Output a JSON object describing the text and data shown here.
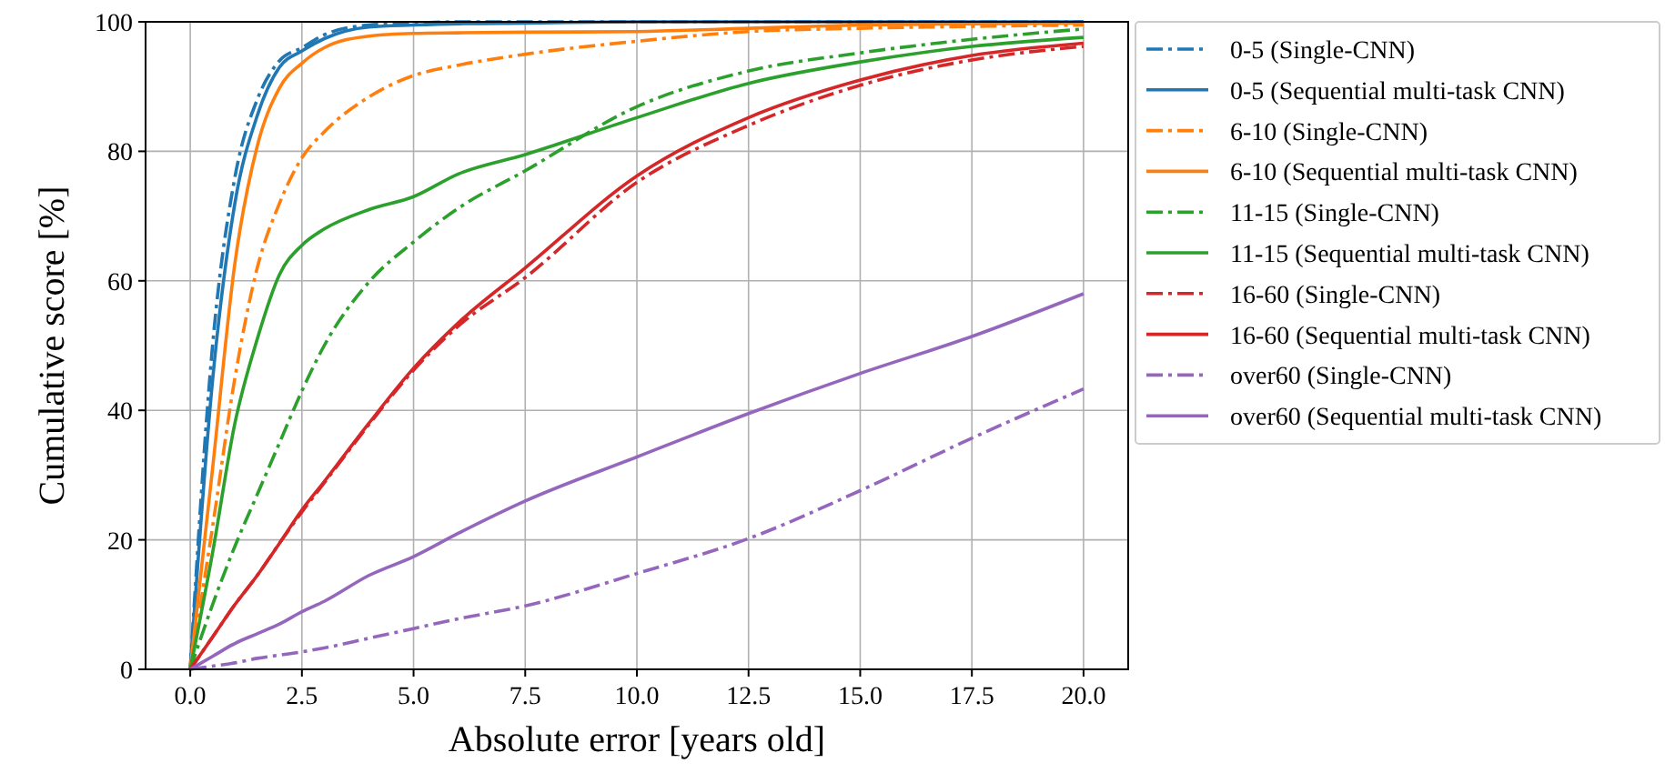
{
  "chart_data": {
    "type": "line",
    "xlabel": "Absolute error [years old]",
    "ylabel": "Cumulative score [%]",
    "xlim": [
      -1,
      21
    ],
    "ylim": [
      0,
      100
    ],
    "xticks": [
      {
        "value": 0,
        "label": "0.0"
      },
      {
        "value": 2.5,
        "label": "2.5"
      },
      {
        "value": 5,
        "label": "5.0"
      },
      {
        "value": 7.5,
        "label": "7.5"
      },
      {
        "value": 10,
        "label": "10.0"
      },
      {
        "value": 12.5,
        "label": "12.5"
      },
      {
        "value": 15,
        "label": "15.0"
      },
      {
        "value": 17.5,
        "label": "17.5"
      },
      {
        "value": 20,
        "label": "20.0"
      }
    ],
    "yticks": [
      0,
      20,
      40,
      60,
      80,
      100
    ],
    "grid": true,
    "legend": "right",
    "x": [
      0,
      0.5,
      1,
      1.5,
      2,
      2.5,
      3,
      4,
      5,
      6,
      7.5,
      10,
      12.5,
      15,
      17.5,
      20
    ],
    "series": [
      {
        "name": "0-5 (Single-CNN)",
        "color": "#1f77b4",
        "line_style": "dashdot",
        "values": [
          0,
          50,
          76,
          88,
          94,
          96,
          98,
          99.5,
          99.8,
          100,
          100,
          100,
          100,
          100,
          100,
          100
        ]
      },
      {
        "name": "0-5 (Sequential multi-task CNN)",
        "color": "#1f77b4",
        "line_style": "solid",
        "values": [
          0,
          44.6,
          72,
          85.5,
          93,
          95.5,
          97.4,
          99.2,
          99.5,
          99.7,
          99.8,
          100,
          100,
          100,
          100,
          100
        ]
      },
      {
        "name": "6-10 (Single-CNN)",
        "color": "#ff7f0e",
        "line_style": "dashdot",
        "values": [
          0,
          22,
          45,
          62,
          72,
          79,
          83,
          88.4,
          91.7,
          93.3,
          95,
          97,
          98.5,
          99,
          99.3,
          99.5
        ]
      },
      {
        "name": "6-10 (Sequential multi-task CNN)",
        "color": "#ff7f0e",
        "line_style": "solid",
        "values": [
          0,
          31,
          62.7,
          80.8,
          89.8,
          93.6,
          96,
          97.8,
          98.2,
          98.3,
          98.4,
          98.5,
          99,
          99.5,
          99.7,
          99.8
        ]
      },
      {
        "name": "11-15 (Single-CNN)",
        "color": "#2ca02c",
        "line_style": "dashdot",
        "values": [
          0,
          10,
          19,
          27,
          35,
          43,
          50,
          59.8,
          66,
          71.2,
          77,
          86.9,
          92.4,
          95.2,
          97.3,
          98.9
        ]
      },
      {
        "name": "11-15 (Sequential multi-task CNN)",
        "color": "#2ca02c",
        "line_style": "solid",
        "values": [
          0,
          18,
          38,
          51,
          61,
          65.5,
          68,
          71,
          73,
          76.5,
          79.5,
          85.2,
          90.5,
          93.8,
          96.2,
          97.6
        ]
      },
      {
        "name": "16-60 (Single-CNN)",
        "color": "#d62728",
        "line_style": "dashdot",
        "values": [
          0,
          5,
          10,
          14.5,
          19.5,
          24.3,
          28.8,
          37.8,
          46.2,
          53,
          60.5,
          75.2,
          84,
          90.2,
          94.1,
          96.2
        ]
      },
      {
        "name": "16-60 (Sequential multi-task CNN)",
        "color": "#d62728",
        "line_style": "solid",
        "values": [
          0,
          5,
          10,
          14.5,
          19.5,
          24.6,
          29,
          38,
          46.5,
          53.5,
          62,
          76.2,
          85.2,
          91,
          94.8,
          96.7
        ]
      },
      {
        "name": "over60 (Single-CNN)",
        "color": "#9467bd",
        "line_style": "dashdot",
        "values": [
          0,
          0.5,
          1,
          1.7,
          2.2,
          2.7,
          3.3,
          4.8,
          6.3,
          7.8,
          9.8,
          14.8,
          20.2,
          27.6,
          35.7,
          43.3
        ]
      },
      {
        "name": "over60 (Sequential multi-task CNN)",
        "color": "#9467bd",
        "line_style": "solid",
        "values": [
          0,
          2,
          4,
          5.5,
          7,
          8.9,
          10.5,
          14.5,
          17.4,
          21,
          26,
          32.8,
          39.5,
          45.7,
          51.4,
          58
        ]
      }
    ]
  }
}
